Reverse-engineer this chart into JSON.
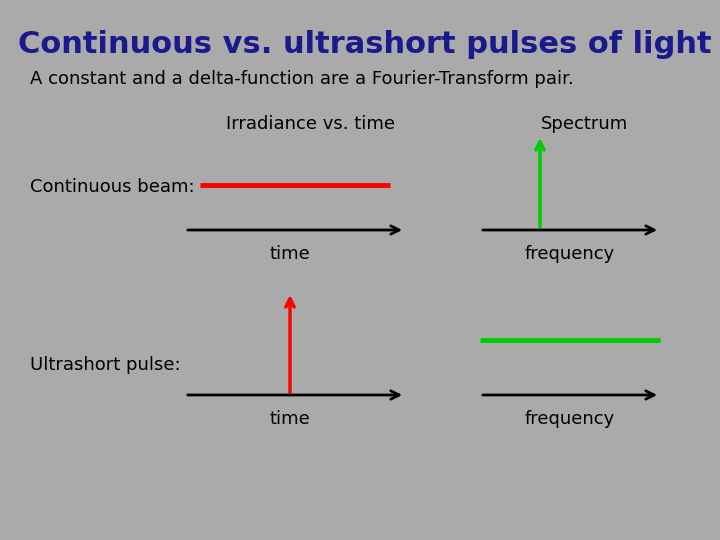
{
  "title": "Continuous vs. ultrashort pulses of light",
  "subtitle": "A constant and a delta-function are a Fourier-Transform pair.",
  "title_color": "#1a1a8c",
  "text_color": "#000000",
  "background_color": "#aaaaaa",
  "title_fontsize": 22,
  "subtitle_fontsize": 13,
  "label_fontsize": 13,
  "axis_label_fontsize": 13,
  "col_headers": [
    "Irradiance vs. time",
    "Spectrum"
  ],
  "row_labels": [
    "Continuous beam:",
    "Ultrashort pulse:"
  ],
  "axis_labels_time": "time",
  "axis_labels_freq": "frequency",
  "red_color": "#ff0000",
  "green_color": "#00cc00",
  "black_color": "#000000"
}
